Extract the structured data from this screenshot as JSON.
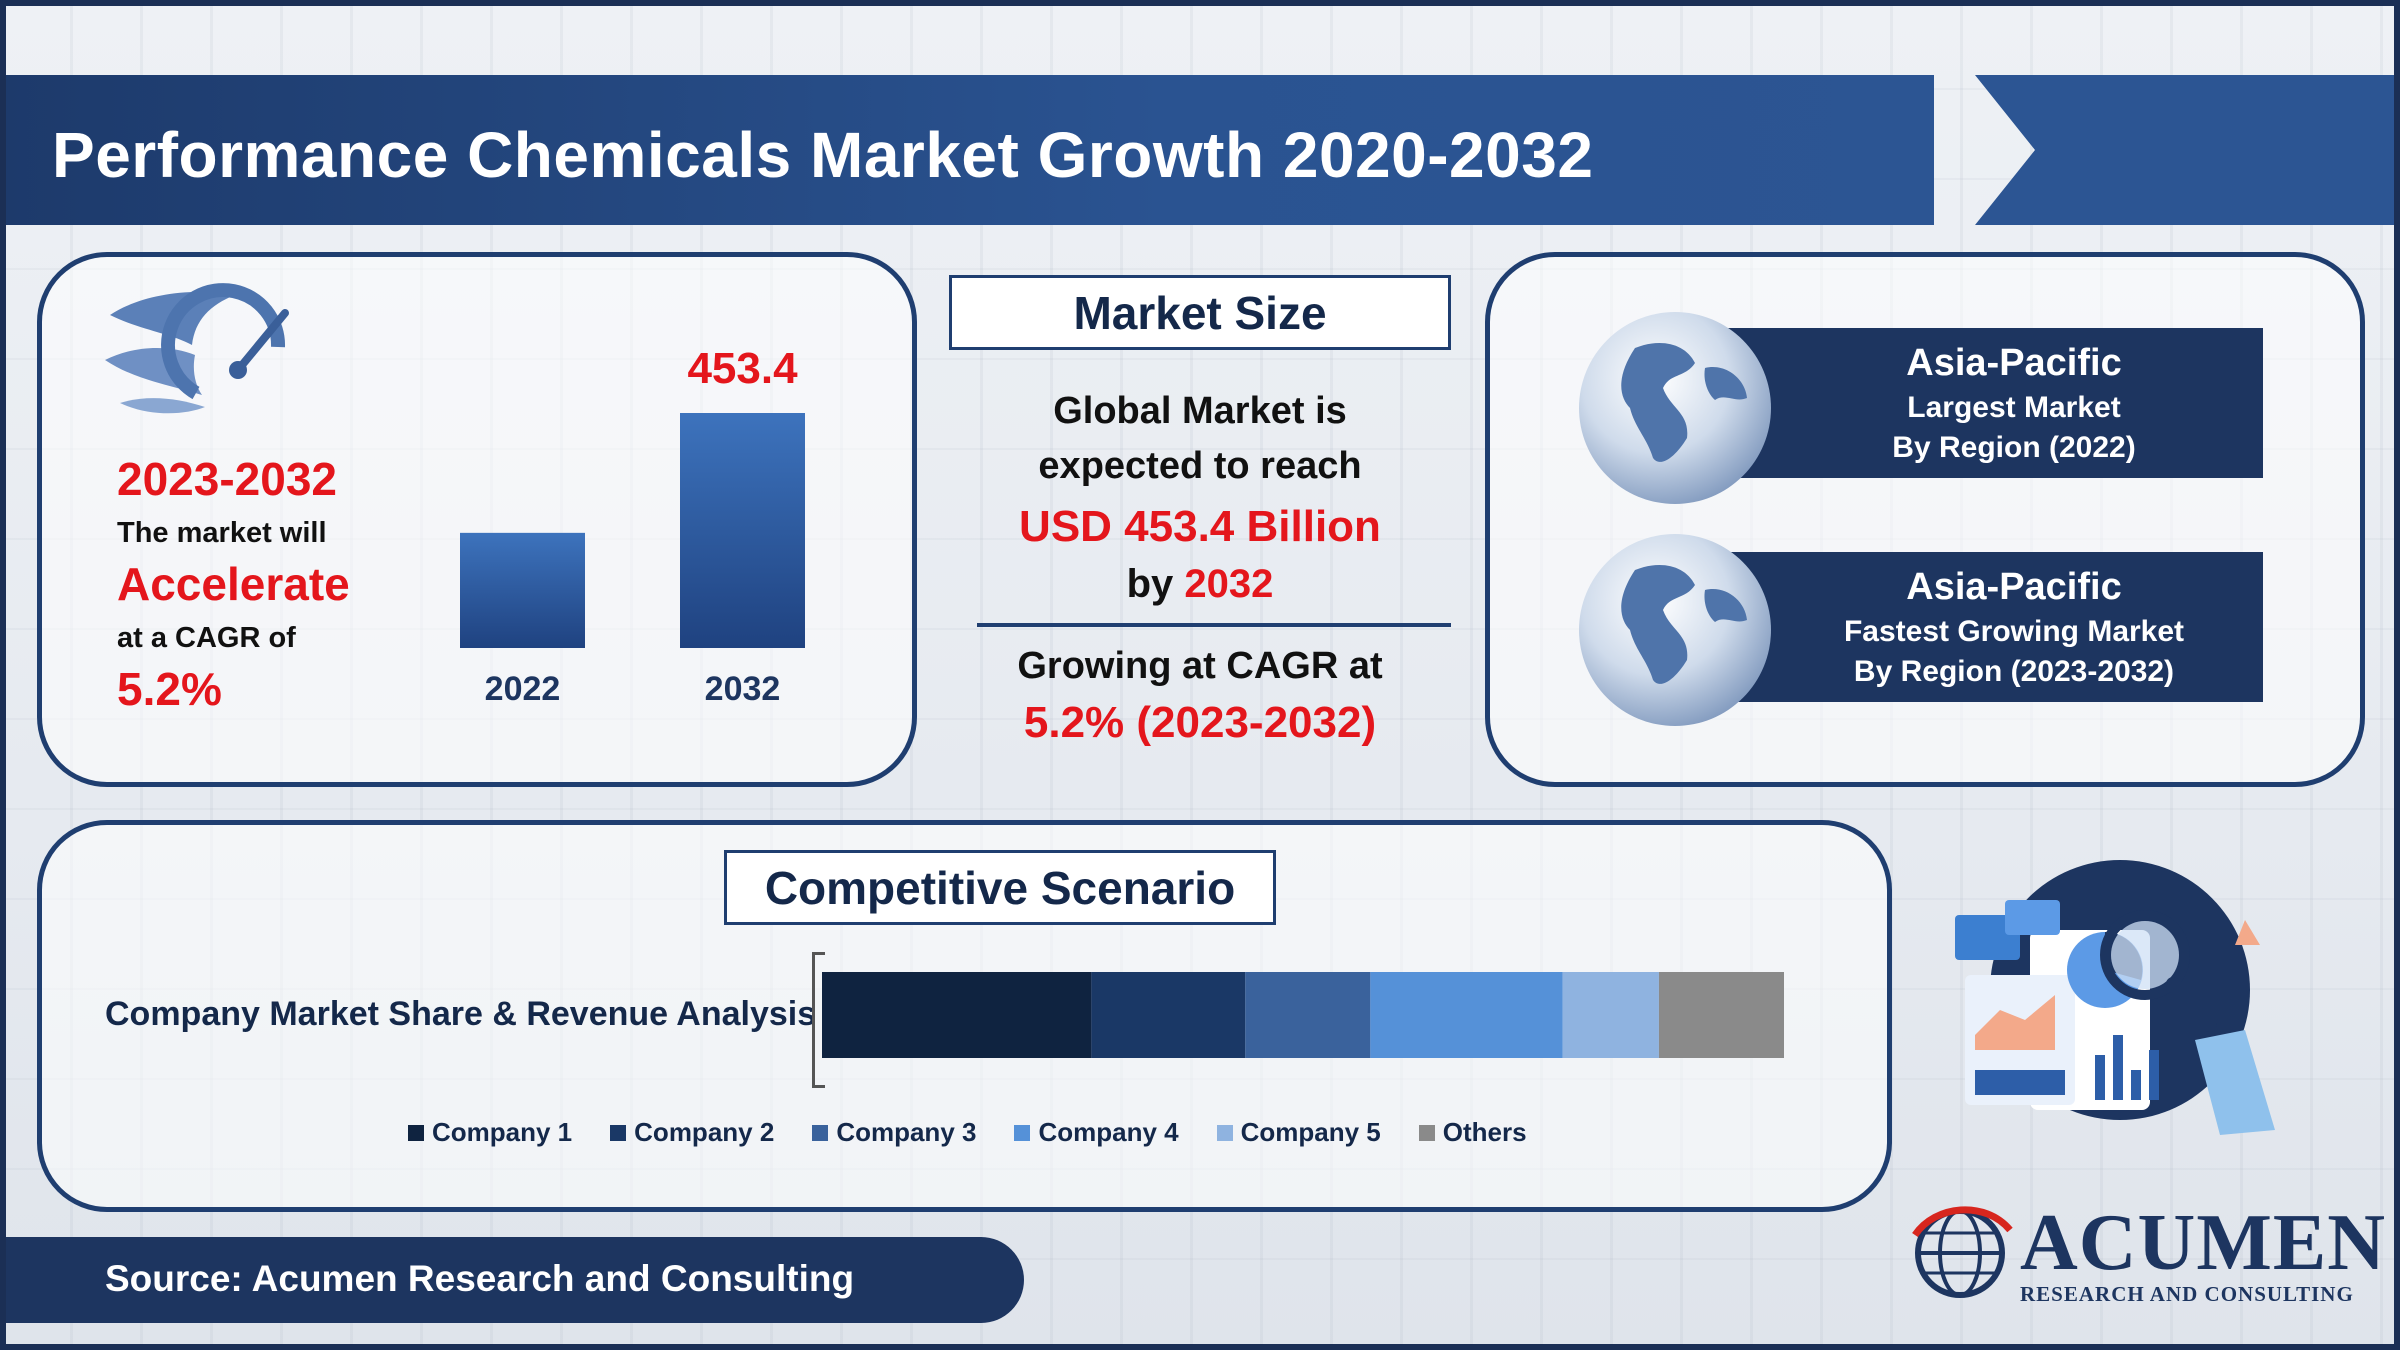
{
  "page": {
    "title": "Performance Chemicals Market Growth 2020-2032"
  },
  "cagr_panel": {
    "years": "2023-2032",
    "line1": "The market will",
    "accent": "Accelerate",
    "line2": "at a CAGR of",
    "value": "5.2%"
  },
  "market_size": {
    "heading": "Market Size",
    "line1": "Global Market is",
    "line2": "expected to reach",
    "line3": "USD 453.4 Billion",
    "line4_prefix": "by",
    "line4_year": "2032",
    "line5": "Growing at CAGR at",
    "line6": "5.2% (2023-2032)"
  },
  "regions": [
    {
      "name": "Asia-Pacific",
      "line1": "Largest Market",
      "line2": "By Region (2022)"
    },
    {
      "name": "Asia-Pacific",
      "line1": "Fastest Growing Market",
      "line2": "By Region (2023-2032)"
    }
  ],
  "competitive": {
    "heading": "Competitive Scenario",
    "row_label": "Company Market Share & Revenue Analysis"
  },
  "source": {
    "text": "Source: Acumen Research and Consulting"
  },
  "logo": {
    "word": "ACUMEN",
    "sub": "RESEARCH AND CONSULTING"
  },
  "colors": {
    "accent_red": "#e4161c",
    "navy": "#1d3560",
    "bar_blue": "#3a6fb8"
  },
  "chart_data": [
    {
      "type": "bar",
      "categories": [
        "2022",
        "2032"
      ],
      "values": [
        null,
        453.4
      ],
      "value_labels": [
        "",
        "453.4"
      ],
      "title": "",
      "xlabel": "",
      "ylabel": ""
    },
    {
      "type": "bar",
      "orientation": "horizontal-stacked",
      "categories": [
        "Company Market Share & Revenue Analysis"
      ],
      "series": [
        {
          "name": "Company 1",
          "values": [
            28
          ],
          "color": "#0f2340"
        },
        {
          "name": "Company 2",
          "values": [
            16
          ],
          "color": "#1a3866"
        },
        {
          "name": "Company 3",
          "values": [
            13
          ],
          "color": "#3a629c"
        },
        {
          "name": "Company 4",
          "values": [
            20
          ],
          "color": "#5591d8"
        },
        {
          "name": "Company 5",
          "values": [
            10
          ],
          "color": "#8fb3e0"
        },
        {
          "name": "Others",
          "values": [
            13
          ],
          "color": "#8a8a8a"
        }
      ]
    }
  ]
}
